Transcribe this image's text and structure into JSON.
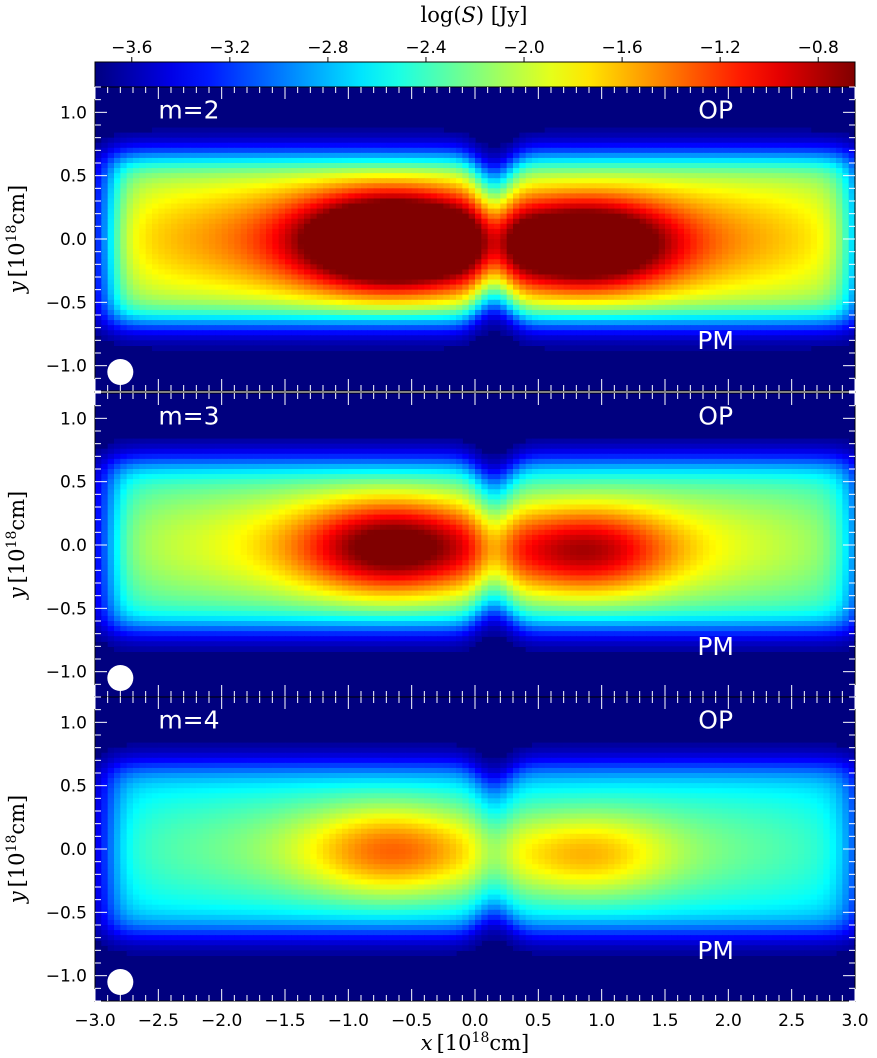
{
  "chart_data": [
    {
      "type": "colorbar",
      "label_prefix": "log(",
      "label_var": "S",
      "label_suffix": ") [Jy]",
      "ticks": [
        -3.6,
        -3.2,
        -2.8,
        -2.4,
        -2.0,
        -1.6,
        -1.2,
        -0.8
      ],
      "tick_labels": [
        "−3.6",
        "−3.2",
        "−2.8",
        "−2.4",
        "−2.0",
        "−1.6",
        "−1.2",
        "−0.8"
      ],
      "range": [
        -3.75,
        -0.65
      ],
      "colormap": "jet"
    },
    {
      "type": "heatmap",
      "panel_label": "m=2",
      "label_top_right": "OP",
      "label_bottom_right": "PM",
      "peak_log_flux": -0.7,
      "xlim": [
        -3.0,
        3.0
      ],
      "ylim": [
        -1.2,
        1.2
      ]
    },
    {
      "type": "heatmap",
      "panel_label": "m=3",
      "label_top_right": "OP",
      "label_bottom_right": "PM",
      "peak_log_flux": -1.0,
      "xlim": [
        -3.0,
        3.0
      ],
      "ylim": [
        -1.2,
        1.2
      ]
    },
    {
      "type": "heatmap",
      "panel_label": "m=4",
      "label_top_right": "OP",
      "label_bottom_right": "PM",
      "peak_log_flux": -1.3,
      "xlim": [
        -3.0,
        3.0
      ],
      "ylim": [
        -1.2,
        1.2
      ]
    }
  ],
  "axes": {
    "x_label_var": "x",
    "x_label_unit_pre": "[10",
    "x_label_exp": "18",
    "x_label_unit_post": "cm]",
    "y_label_var": "y",
    "y_label_unit_pre": "[10",
    "y_label_exp": "18",
    "y_label_unit_post": "cm]",
    "x_ticks": [
      -3.0,
      -2.5,
      -2.0,
      -1.5,
      -1.0,
      -0.5,
      0.0,
      0.5,
      1.0,
      1.5,
      2.0,
      2.5,
      3.0
    ],
    "x_tick_labels": [
      "−3.0",
      "−2.5",
      "−2.0",
      "−1.5",
      "−1.0",
      "−0.5",
      "0.0",
      "0.5",
      "1.0",
      "1.5",
      "2.0",
      "2.5",
      "3.0"
    ],
    "y_ticks": [
      1.0,
      0.5,
      0.0,
      -0.5,
      -1.0
    ],
    "y_tick_labels": [
      "1.0",
      "0.5",
      "0.0",
      "−0.5",
      "−1.0"
    ]
  },
  "colors": {
    "background_cmap_min": "#00007f",
    "beam_marker": "#ffffff",
    "panel_text": "#ffffff"
  }
}
